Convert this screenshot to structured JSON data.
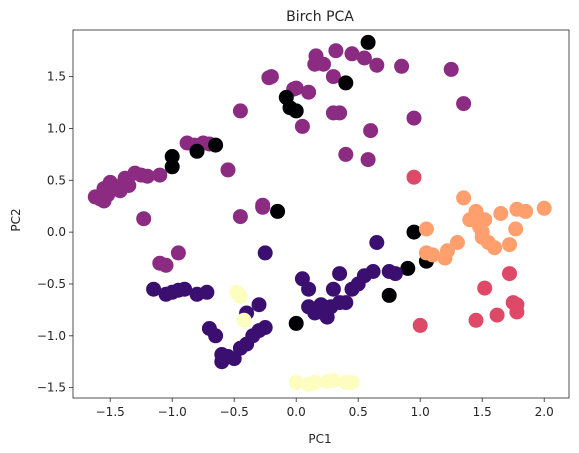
{
  "chart_data": {
    "type": "scatter",
    "title": "Birch PCA",
    "xlabel": "PC1",
    "ylabel": "PC2",
    "xlim": [
      -1.8,
      2.2
    ],
    "ylim": [
      -1.6,
      1.95
    ],
    "xticks": [
      -1.5,
      -1.0,
      -0.5,
      0.0,
      0.5,
      1.0,
      1.5,
      2.0
    ],
    "yticks": [
      -1.5,
      -1.0,
      -0.5,
      0.0,
      0.5,
      1.0,
      1.5
    ],
    "xtick_labels": [
      "−1.5",
      "−1.0",
      "−0.5",
      "0.0",
      "0.5",
      "1.0",
      "1.5",
      "2.0"
    ],
    "ytick_labels": [
      "−1.5",
      "−1.0",
      "−0.5",
      "0.0",
      "0.5",
      "1.0",
      "1.5"
    ],
    "grid": false,
    "legend": "none",
    "series": [
      {
        "color": "#8b2b82",
        "points": [
          [
            -1.62,
            0.34
          ],
          [
            -1.58,
            0.32
          ],
          [
            -1.55,
            0.3
          ],
          [
            -1.52,
            0.36
          ],
          [
            -1.55,
            0.42
          ],
          [
            -1.5,
            0.48
          ],
          [
            -1.45,
            0.44
          ],
          [
            -1.38,
            0.52
          ],
          [
            -1.42,
            0.4
          ],
          [
            -1.35,
            0.45
          ],
          [
            -1.3,
            0.57
          ],
          [
            -1.25,
            0.55
          ],
          [
            -1.2,
            0.54
          ],
          [
            -1.23,
            0.13
          ],
          [
            -1.1,
            0.55
          ],
          [
            -0.88,
            0.86
          ],
          [
            -0.82,
            0.84
          ],
          [
            -0.75,
            0.86
          ],
          [
            -0.7,
            0.85
          ],
          [
            -0.55,
            0.6
          ],
          [
            -0.45,
            1.17
          ],
          [
            -0.45,
            0.15
          ],
          [
            -0.27,
            0.24
          ],
          [
            -0.27,
            0.26
          ],
          [
            -0.2,
            1.5
          ],
          [
            -0.22,
            1.49
          ],
          [
            -0.02,
            1.38
          ],
          [
            0.0,
            1.39
          ],
          [
            0.05,
            1.02
          ],
          [
            0.1,
            1.35
          ],
          [
            0.15,
            1.62
          ],
          [
            0.16,
            1.7
          ],
          [
            0.22,
            1.62
          ],
          [
            0.3,
            1.5
          ],
          [
            0.32,
            1.75
          ],
          [
            0.3,
            1.15
          ],
          [
            0.35,
            1.15
          ],
          [
            0.45,
            1.72
          ],
          [
            0.55,
            1.68
          ],
          [
            0.4,
            0.75
          ],
          [
            0.6,
            0.98
          ],
          [
            0.65,
            1.61
          ],
          [
            0.85,
            1.6
          ],
          [
            0.58,
            0.7
          ],
          [
            0.95,
            1.1
          ],
          [
            1.25,
            1.57
          ],
          [
            1.35,
            1.24
          ],
          [
            -0.95,
            -0.2
          ],
          [
            -1.1,
            -0.3
          ],
          [
            -1.05,
            -0.32
          ]
        ]
      },
      {
        "color": "#000004",
        "points": [
          [
            -1.0,
            0.73
          ],
          [
            -1.0,
            0.63
          ],
          [
            -0.8,
            0.78
          ],
          [
            -0.65,
            0.84
          ],
          [
            -0.15,
            0.2
          ],
          [
            -0.08,
            1.3
          ],
          [
            -0.05,
            1.2
          ],
          [
            0.0,
            1.17
          ],
          [
            0.4,
            1.44
          ],
          [
            0.58,
            1.83
          ],
          [
            0.0,
            -0.88
          ],
          [
            0.75,
            -0.61
          ],
          [
            0.9,
            -0.35
          ],
          [
            0.95,
            0.0
          ],
          [
            1.05,
            -0.28
          ]
        ]
      },
      {
        "color": "#3b0f70",
        "points": [
          [
            -1.15,
            -0.55
          ],
          [
            -1.05,
            -0.6
          ],
          [
            -1.0,
            -0.58
          ],
          [
            -0.95,
            -0.56
          ],
          [
            -0.9,
            -0.55
          ],
          [
            -0.8,
            -0.6
          ],
          [
            -0.72,
            -0.58
          ],
          [
            -0.7,
            -0.93
          ],
          [
            -0.65,
            -1.0
          ],
          [
            -0.6,
            -1.18
          ],
          [
            -0.6,
            -1.25
          ],
          [
            -0.55,
            -1.2
          ],
          [
            -0.5,
            -1.22
          ],
          [
            -0.45,
            -1.12
          ],
          [
            -0.4,
            -1.08
          ],
          [
            -0.35,
            -1.0
          ],
          [
            -0.3,
            -0.95
          ],
          [
            -0.25,
            -0.92
          ],
          [
            -0.3,
            -0.7
          ],
          [
            -0.4,
            -0.78
          ],
          [
            -0.25,
            -0.2
          ],
          [
            0.05,
            -0.45
          ],
          [
            0.1,
            -0.72
          ],
          [
            0.1,
            -0.55
          ],
          [
            0.15,
            -0.78
          ],
          [
            0.2,
            -0.7
          ],
          [
            0.22,
            -0.78
          ],
          [
            0.25,
            -0.82
          ],
          [
            0.28,
            -0.72
          ],
          [
            0.3,
            -0.55
          ],
          [
            0.35,
            -0.68
          ],
          [
            0.35,
            -0.4
          ],
          [
            0.4,
            -0.68
          ],
          [
            0.45,
            -0.55
          ],
          [
            0.5,
            -0.5
          ],
          [
            0.55,
            -0.42
          ],
          [
            0.62,
            -0.38
          ],
          [
            0.65,
            -0.1
          ],
          [
            0.75,
            -0.38
          ],
          [
            0.8,
            -0.4
          ]
        ]
      },
      {
        "color": "#fe9f6d",
        "points": [
          [
            1.05,
            0.03
          ],
          [
            1.05,
            -0.2
          ],
          [
            1.1,
            -0.22
          ],
          [
            1.2,
            -0.25
          ],
          [
            1.22,
            -0.18
          ],
          [
            1.3,
            -0.1
          ],
          [
            1.35,
            0.33
          ],
          [
            1.4,
            0.12
          ],
          [
            1.45,
            0.2
          ],
          [
            1.48,
            0.05
          ],
          [
            1.5,
            0.0
          ],
          [
            1.5,
            -0.05
          ],
          [
            1.52,
            0.12
          ],
          [
            1.55,
            -0.1
          ],
          [
            1.6,
            -0.15
          ],
          [
            1.65,
            0.18
          ],
          [
            1.72,
            -0.12
          ],
          [
            1.78,
            0.22
          ],
          [
            1.85,
            0.2
          ],
          [
            1.77,
            0.03
          ],
          [
            2.0,
            0.23
          ]
        ]
      },
      {
        "color": "#de4968",
        "points": [
          [
            0.95,
            0.53
          ],
          [
            1.0,
            -0.9
          ],
          [
            1.45,
            -0.85
          ],
          [
            1.52,
            -0.54
          ],
          [
            1.62,
            -0.8
          ],
          [
            1.72,
            -0.4
          ],
          [
            1.75,
            -0.68
          ],
          [
            1.78,
            -0.7
          ],
          [
            1.78,
            -0.77
          ]
        ]
      },
      {
        "color": "#fcfdbf",
        "points": [
          [
            -0.48,
            -0.58
          ],
          [
            -0.45,
            -0.62
          ],
          [
            -0.42,
            -0.85
          ],
          [
            -0.0,
            -1.45
          ],
          [
            0.1,
            -1.47
          ],
          [
            0.15,
            -1.45
          ],
          [
            0.25,
            -1.44
          ],
          [
            0.3,
            -1.43
          ],
          [
            0.4,
            -1.45
          ],
          [
            0.45,
            -1.45
          ]
        ]
      }
    ]
  }
}
